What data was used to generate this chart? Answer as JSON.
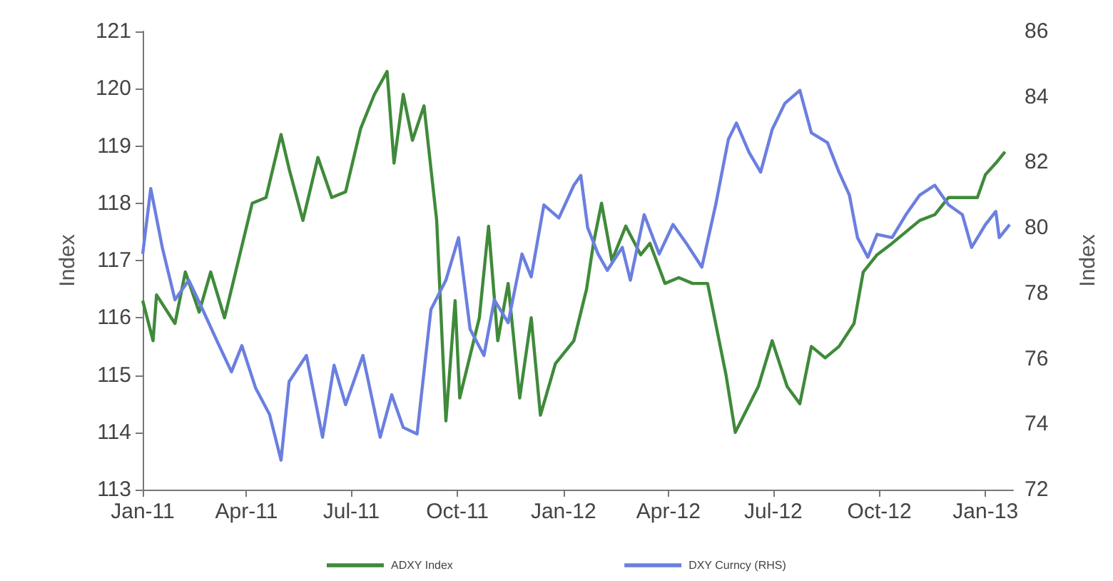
{
  "chart_data": {
    "type": "line",
    "ylabel": "Index",
    "y2label": "Index",
    "xlim": [
      "2011-01-01",
      "2013-01-25"
    ],
    "xticks": [
      {
        "value": "2011-01-01",
        "label": "Jan-11"
      },
      {
        "value": "2011-04-01",
        "label": "Apr-11"
      },
      {
        "value": "2011-07-01",
        "label": "Jul-11"
      },
      {
        "value": "2011-10-01",
        "label": "Oct-11"
      },
      {
        "value": "2012-01-01",
        "label": "Jan-12"
      },
      {
        "value": "2012-04-01",
        "label": "Apr-12"
      },
      {
        "value": "2012-07-01",
        "label": "Jul-12"
      },
      {
        "value": "2012-10-01",
        "label": "Oct-12"
      },
      {
        "value": "2013-01-01",
        "label": "Jan-13"
      }
    ],
    "ylim": [
      113,
      121
    ],
    "yticks": [
      113,
      114,
      115,
      116,
      117,
      118,
      119,
      120,
      121
    ],
    "y2lim": [
      72,
      86
    ],
    "y2ticks": [
      72,
      74,
      76,
      78,
      80,
      82,
      84,
      86
    ],
    "grid": false,
    "legend": "bottom",
    "series": [
      {
        "name": "ADXY Index",
        "color": "#3f8a3a",
        "x": [
          "2011-01-01",
          "2011-01-10",
          "2011-01-13",
          "2011-01-29",
          "2011-02-07",
          "2011-02-19",
          "2011-03-01",
          "2011-03-13",
          "2011-03-25",
          "2011-04-06",
          "2011-04-18",
          "2011-05-01",
          "2011-05-08",
          "2011-05-20",
          "2011-06-02",
          "2011-06-14",
          "2011-06-26",
          "2011-07-09",
          "2011-07-21",
          "2011-08-01",
          "2011-08-07",
          "2011-08-15",
          "2011-08-23",
          "2011-09-02",
          "2011-09-13",
          "2011-09-21",
          "2011-09-29",
          "2011-10-03",
          "2011-10-20",
          "2011-10-28",
          "2011-11-05",
          "2011-11-14",
          "2011-11-24",
          "2011-12-04",
          "2011-12-12",
          "2011-12-25",
          "2012-01-10",
          "2012-01-21",
          "2012-01-27",
          "2012-02-03",
          "2012-02-12",
          "2012-02-24",
          "2012-03-08",
          "2012-03-16",
          "2012-03-29",
          "2012-04-10",
          "2012-04-22",
          "2012-05-05",
          "2012-05-12",
          "2012-05-21",
          "2012-05-29",
          "2012-06-08",
          "2012-06-18",
          "2012-06-30",
          "2012-07-13",
          "2012-07-24",
          "2012-08-03",
          "2012-08-15",
          "2012-08-27",
          "2012-09-09",
          "2012-09-17",
          "2012-09-29",
          "2012-10-12",
          "2012-10-24",
          "2012-11-05",
          "2012-11-18",
          "2012-11-30",
          "2012-12-12",
          "2012-12-25",
          "2013-01-01",
          "2013-01-10",
          "2013-01-18"
        ],
        "values": [
          116.3,
          115.6,
          116.4,
          115.9,
          116.8,
          116.1,
          116.8,
          116.0,
          117.0,
          118.0,
          118.1,
          119.2,
          118.6,
          117.7,
          118.8,
          118.1,
          118.2,
          119.3,
          119.9,
          120.3,
          118.7,
          119.9,
          119.1,
          119.7,
          117.7,
          114.2,
          116.3,
          114.6,
          116.0,
          117.6,
          115.6,
          116.6,
          114.6,
          116.0,
          114.3,
          115.2,
          115.6,
          116.5,
          117.3,
          118.0,
          117.0,
          117.6,
          117.1,
          117.3,
          116.6,
          116.7,
          116.6,
          116.6,
          115.9,
          115.0,
          114.0,
          114.4,
          114.8,
          115.6,
          114.8,
          114.5,
          115.5,
          115.3,
          115.5,
          115.9,
          116.8,
          117.1,
          117.3,
          117.5,
          117.7,
          117.8,
          118.1,
          118.1,
          118.1,
          118.5,
          118.7,
          118.9
        ]
      },
      {
        "name": "DXY Curncy (RHS)",
        "color": "#6b7fe0",
        "axis": "y2",
        "x": [
          "2011-01-01",
          "2011-01-08",
          "2011-01-18",
          "2011-01-29",
          "2011-02-10",
          "2011-02-22",
          "2011-03-07",
          "2011-03-19",
          "2011-03-28",
          "2011-04-09",
          "2011-04-21",
          "2011-05-01",
          "2011-05-08",
          "2011-05-23",
          "2011-06-06",
          "2011-06-16",
          "2011-06-26",
          "2011-07-11",
          "2011-07-26",
          "2011-08-05",
          "2011-08-15",
          "2011-08-27",
          "2011-09-08",
          "2011-09-21",
          "2011-10-02",
          "2011-10-12",
          "2011-10-24",
          "2011-11-02",
          "2011-11-14",
          "2011-11-26",
          "2011-12-04",
          "2011-12-15",
          "2011-12-28",
          "2012-01-10",
          "2012-01-16",
          "2012-01-22",
          "2012-01-31",
          "2012-02-08",
          "2012-02-21",
          "2012-02-28",
          "2012-03-11",
          "2012-03-24",
          "2012-04-05",
          "2012-04-17",
          "2012-04-30",
          "2012-05-12",
          "2012-05-23",
          "2012-05-30",
          "2012-06-10",
          "2012-06-20",
          "2012-06-30",
          "2012-07-11",
          "2012-07-24",
          "2012-08-03",
          "2012-08-17",
          "2012-08-27",
          "2012-09-05",
          "2012-09-12",
          "2012-09-21",
          "2012-09-29",
          "2012-10-12",
          "2012-10-24",
          "2012-11-05",
          "2012-11-18",
          "2012-11-30",
          "2012-12-12",
          "2012-12-20",
          "2013-01-01",
          "2013-01-10",
          "2013-01-13",
          "2013-01-22"
        ],
        "values": [
          79.2,
          81.2,
          79.4,
          77.8,
          78.4,
          77.5,
          76.5,
          75.6,
          76.4,
          75.1,
          74.3,
          72.9,
          75.3,
          76.1,
          73.6,
          75.8,
          74.6,
          76.1,
          73.6,
          74.9,
          73.9,
          73.7,
          77.5,
          78.4,
          79.7,
          76.9,
          76.1,
          77.8,
          77.1,
          79.2,
          78.5,
          80.7,
          80.3,
          81.3,
          81.6,
          80.0,
          79.2,
          78.7,
          79.4,
          78.4,
          80.4,
          79.2,
          80.1,
          79.5,
          78.8,
          80.7,
          82.7,
          83.2,
          82.3,
          81.7,
          83.0,
          83.8,
          84.2,
          82.9,
          82.6,
          81.7,
          81.0,
          79.7,
          79.1,
          79.8,
          79.7,
          80.4,
          81.0,
          81.3,
          80.7,
          80.4,
          79.4,
          80.1,
          80.5,
          79.7,
          80.1
        ]
      }
    ]
  }
}
